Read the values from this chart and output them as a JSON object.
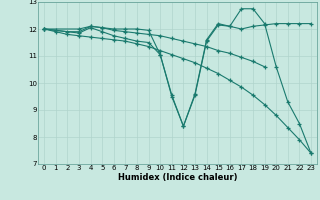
{
  "xlabel": "Humidex (Indice chaleur)",
  "xlim": [
    -0.5,
    23.5
  ],
  "ylim": [
    7,
    13
  ],
  "xticks": [
    0,
    1,
    2,
    3,
    4,
    5,
    6,
    7,
    8,
    9,
    10,
    11,
    12,
    13,
    14,
    15,
    16,
    17,
    18,
    19,
    20,
    21,
    22,
    23
  ],
  "yticks": [
    7,
    8,
    9,
    10,
    11,
    12,
    13
  ],
  "bg_color": "#c8e8e0",
  "line_color": "#1a7a6e",
  "lines": [
    {
      "x": [
        0,
        1,
        2,
        3,
        4,
        5,
        6,
        7,
        8,
        9,
        10,
        11,
        12,
        13,
        14,
        15,
        16,
        17,
        18,
        19,
        20,
        21,
        22,
        23
      ],
      "y": [
        12.0,
        11.9,
        11.8,
        11.75,
        11.7,
        11.65,
        11.6,
        11.55,
        11.45,
        11.35,
        11.2,
        11.05,
        10.9,
        10.75,
        10.55,
        10.35,
        10.1,
        9.85,
        9.55,
        9.2,
        8.8,
        8.35,
        7.9,
        7.4
      ]
    },
    {
      "x": [
        0,
        3,
        4,
        5,
        6,
        7,
        8,
        9,
        10,
        11,
        12,
        13,
        14,
        15,
        16,
        17,
        18,
        19,
        20,
        21,
        22,
        23
      ],
      "y": [
        12.0,
        12.0,
        12.1,
        12.05,
        12.0,
        12.0,
        12.0,
        11.95,
        11.05,
        9.5,
        8.4,
        9.6,
        11.6,
        12.2,
        12.1,
        12.75,
        12.75,
        12.2,
        10.6,
        9.3,
        8.5,
        7.4
      ]
    },
    {
      "x": [
        0,
        1,
        2,
        3,
        4,
        5,
        6,
        7,
        8,
        9,
        10,
        11,
        12,
        13,
        14,
        15,
        16,
        17,
        18,
        19
      ],
      "y": [
        12.0,
        11.95,
        11.9,
        11.9,
        12.1,
        12.05,
        11.95,
        11.9,
        11.85,
        11.8,
        11.75,
        11.65,
        11.55,
        11.45,
        11.35,
        11.2,
        11.1,
        10.95,
        10.8,
        10.6
      ]
    },
    {
      "x": [
        0,
        3,
        4,
        5,
        6,
        7,
        8,
        9,
        10,
        11,
        12,
        13,
        14,
        15,
        16,
        17,
        18,
        19,
        20,
        21,
        22,
        23
      ],
      "y": [
        12.0,
        11.85,
        12.05,
        11.9,
        11.75,
        11.65,
        11.55,
        11.5,
        11.05,
        9.55,
        8.4,
        9.55,
        11.55,
        12.15,
        12.1,
        12.0,
        12.1,
        12.15,
        12.2,
        12.2,
        12.2,
        12.2
      ]
    }
  ]
}
